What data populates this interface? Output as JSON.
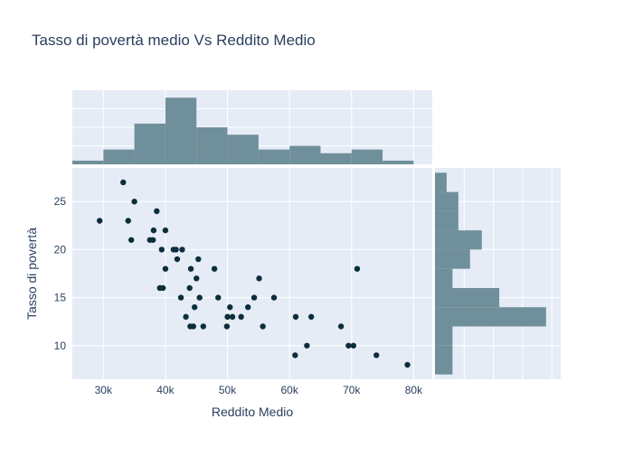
{
  "chart_data": {
    "type": "scatter",
    "title": "Tasso di povertà medio Vs Reddito Medio",
    "xlabel": "Reddito Medio",
    "ylabel": "Tasso di povertà",
    "xlim": [
      25000,
      83000
    ],
    "ylim": [
      6.5,
      28.5
    ],
    "x_ticks": [
      30000,
      40000,
      50000,
      60000,
      70000,
      80000
    ],
    "x_tick_labels": [
      "30k",
      "40k",
      "50k",
      "60k",
      "70k",
      "80k"
    ],
    "y_ticks": [
      10,
      15,
      20,
      25
    ],
    "y_tick_labels": [
      "10",
      "15",
      "20",
      "25"
    ],
    "grid": true,
    "colors": {
      "points": "#0b2e3b",
      "histogram": "#6f8f9b",
      "plot_bg": "#e5ecf6",
      "grid": "#ffffff"
    },
    "points": [
      {
        "x": 29400,
        "y": 23
      },
      {
        "x": 33200,
        "y": 27
      },
      {
        "x": 34000,
        "y": 23
      },
      {
        "x": 34500,
        "y": 21
      },
      {
        "x": 35000,
        "y": 25
      },
      {
        "x": 37500,
        "y": 21
      },
      {
        "x": 38000,
        "y": 21
      },
      {
        "x": 38100,
        "y": 22
      },
      {
        "x": 38600,
        "y": 24
      },
      {
        "x": 39100,
        "y": 16
      },
      {
        "x": 39400,
        "y": 20
      },
      {
        "x": 39600,
        "y": 16
      },
      {
        "x": 40000,
        "y": 18
      },
      {
        "x": 40000,
        "y": 22
      },
      {
        "x": 41300,
        "y": 20
      },
      {
        "x": 41700,
        "y": 20
      },
      {
        "x": 41900,
        "y": 19
      },
      {
        "x": 42500,
        "y": 15
      },
      {
        "x": 42700,
        "y": 20
      },
      {
        "x": 43300,
        "y": 13
      },
      {
        "x": 43900,
        "y": 16
      },
      {
        "x": 44000,
        "y": 12
      },
      {
        "x": 44100,
        "y": 18
      },
      {
        "x": 44500,
        "y": 12
      },
      {
        "x": 44700,
        "y": 14
      },
      {
        "x": 45000,
        "y": 17
      },
      {
        "x": 45300,
        "y": 19
      },
      {
        "x": 45500,
        "y": 15
      },
      {
        "x": 46100,
        "y": 12
      },
      {
        "x": 47900,
        "y": 18
      },
      {
        "x": 48500,
        "y": 15
      },
      {
        "x": 49900,
        "y": 12
      },
      {
        "x": 50000,
        "y": 13
      },
      {
        "x": 50400,
        "y": 14
      },
      {
        "x": 50800,
        "y": 13
      },
      {
        "x": 52200,
        "y": 13
      },
      {
        "x": 53300,
        "y": 14
      },
      {
        "x": 54300,
        "y": 15
      },
      {
        "x": 55100,
        "y": 17
      },
      {
        "x": 55700,
        "y": 12
      },
      {
        "x": 57500,
        "y": 15
      },
      {
        "x": 60900,
        "y": 9
      },
      {
        "x": 61000,
        "y": 13
      },
      {
        "x": 62800,
        "y": 10
      },
      {
        "x": 63500,
        "y": 13
      },
      {
        "x": 68300,
        "y": 12
      },
      {
        "x": 69500,
        "y": 10
      },
      {
        "x": 70300,
        "y": 10
      },
      {
        "x": 70900,
        "y": 18
      },
      {
        "x": 74000,
        "y": 9
      },
      {
        "x": 79000,
        "y": 8
      }
    ],
    "x_histogram": {
      "bins": [
        [
          25000,
          30000
        ],
        [
          30000,
          35000
        ],
        [
          35000,
          40000
        ],
        [
          40000,
          45000
        ],
        [
          45000,
          50000
        ],
        [
          50000,
          55000
        ],
        [
          55000,
          60000
        ],
        [
          60000,
          65000
        ],
        [
          65000,
          70000
        ],
        [
          70000,
          75000
        ],
        [
          75000,
          80000
        ]
      ],
      "counts": [
        1,
        4,
        11,
        18,
        10,
        8,
        4,
        5,
        3,
        4,
        1
      ]
    },
    "y_histogram": {
      "bins": [
        [
          7,
          8
        ],
        [
          8,
          10
        ],
        [
          10,
          12
        ],
        [
          12,
          14
        ],
        [
          14,
          16
        ],
        [
          16,
          18
        ],
        [
          18,
          20
        ],
        [
          20,
          22
        ],
        [
          22,
          24
        ],
        [
          24,
          26
        ],
        [
          26,
          28
        ]
      ],
      "counts": [
        3,
        3,
        3,
        19,
        11,
        3,
        6,
        8,
        4,
        4,
        2
      ]
    }
  }
}
